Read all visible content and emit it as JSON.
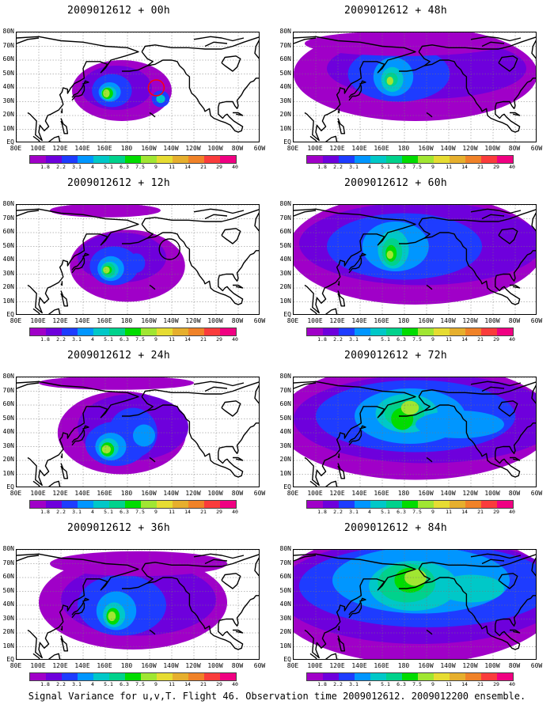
{
  "panels": [
    {
      "title": "2009012612 + 00h",
      "lead_hours": 0,
      "flight_circle": true
    },
    {
      "title": "2009012612 + 48h",
      "lead_hours": 48,
      "flight_circle": false
    },
    {
      "title": "2009012612 + 12h",
      "lead_hours": 12,
      "flight_circle": true
    },
    {
      "title": "2009012612 + 60h",
      "lead_hours": 60,
      "flight_circle": false
    },
    {
      "title": "2009012612 + 24h",
      "lead_hours": 24,
      "flight_circle": false
    },
    {
      "title": "2009012612 + 72h",
      "lead_hours": 72,
      "flight_circle": false
    },
    {
      "title": "2009012612 + 36h",
      "lead_hours": 36,
      "flight_circle": false
    },
    {
      "title": "2009012612 + 84h",
      "lead_hours": 84,
      "flight_circle": false
    }
  ],
  "map_axes": {
    "lat_labels": [
      "80N",
      "70N",
      "60N",
      "50N",
      "40N",
      "30N",
      "20N",
      "10N",
      "EQ"
    ],
    "lon_labels": [
      "80E",
      "100E",
      "120E",
      "140E",
      "160E",
      "180",
      "160W",
      "140W",
      "120W",
      "100W",
      "80W",
      "60W"
    ],
    "lon_range": [
      80,
      300
    ],
    "lat_range": [
      0,
      80
    ]
  },
  "colorbar": {
    "labels": [
      "1.8",
      "2.2",
      "3.1",
      "4",
      "5.1",
      "6.3",
      "7.5",
      "9",
      "11",
      "14",
      "21",
      "29",
      "40"
    ],
    "colors": [
      "#a000c8",
      "#6e00dc",
      "#1e3cff",
      "#0096ff",
      "#00c8c8",
      "#00d28c",
      "#00dc00",
      "#a0e632",
      "#e6dc32",
      "#e6af2d",
      "#f08228",
      "#fa3c3c",
      "#f00082"
    ]
  },
  "caption": "Signal Variance for u,v,T. Flight 46. Observation time 2009012612. 2009012200 ensemble.",
  "colors": {
    "background": "#ffffff",
    "coast": "#000000",
    "grid": "#777777",
    "flight_circle_first": "#ff0000",
    "flight_circle_second": "#000000"
  }
}
